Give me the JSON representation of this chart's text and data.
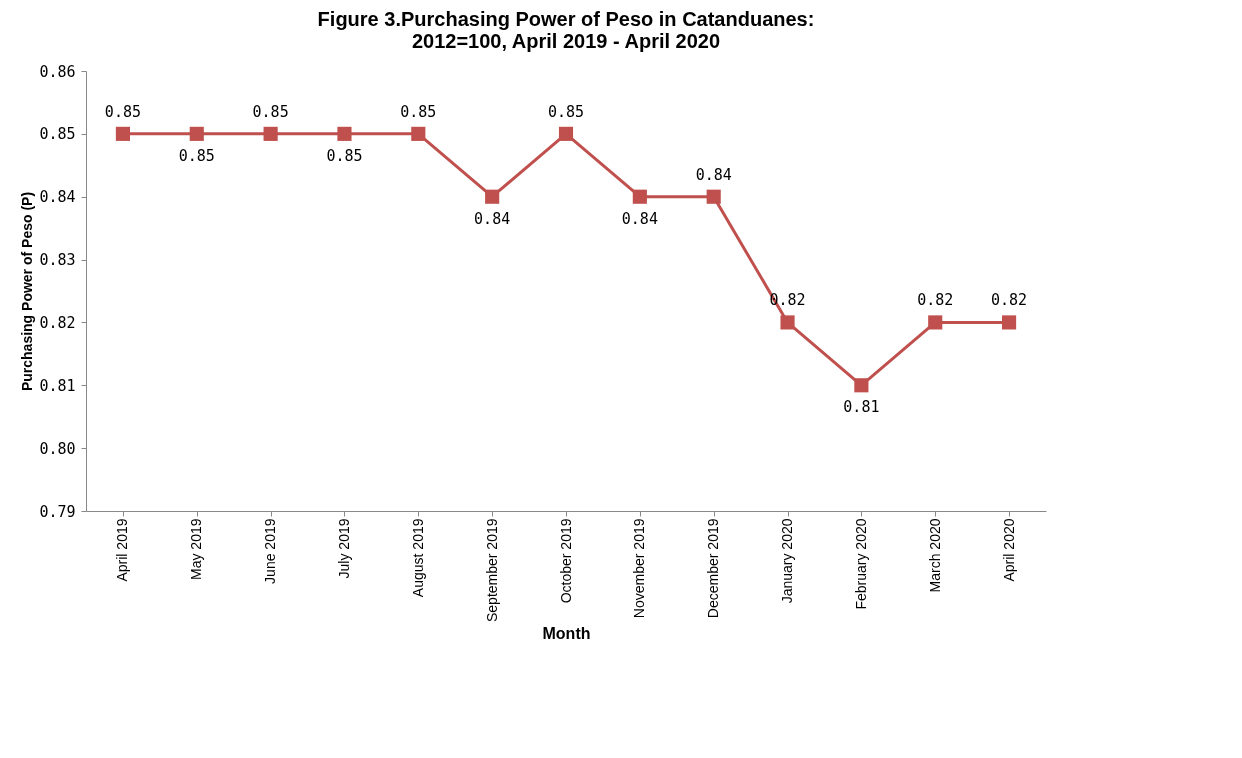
{
  "chart_data": {
    "type": "line",
    "title": "Figure 3.Purchasing Power of Peso in Catanduanes:\n2012=100, April 2019 - April 2020",
    "xlabel": "Month",
    "ylabel": "Purchasing Power of Peso (P)",
    "categories": [
      "April 2019",
      "May 2019",
      "June 2019",
      "July 2019",
      "August 2019",
      "September 2019",
      "October 2019",
      "November 2019",
      "December 2019",
      "January 2020",
      "February 2020",
      "March 2020",
      "April 2020"
    ],
    "series": [
      {
        "color": "#c0504d",
        "values": [
          0.85,
          0.85,
          0.85,
          0.85,
          0.85,
          0.84,
          0.85,
          0.84,
          0.84,
          0.82,
          0.81,
          0.82,
          0.82
        ]
      }
    ],
    "ylim": [
      0.79,
      0.86
    ],
    "yticks": [
      0.79,
      {
        "value": 0.8,
        "label": "0.80"
      },
      0.81,
      0.82,
      0.83,
      0.84,
      0.85,
      0.86
    ],
    "data_labels": true,
    "grid": false,
    "marker": "square",
    "line_style": "solid"
  }
}
